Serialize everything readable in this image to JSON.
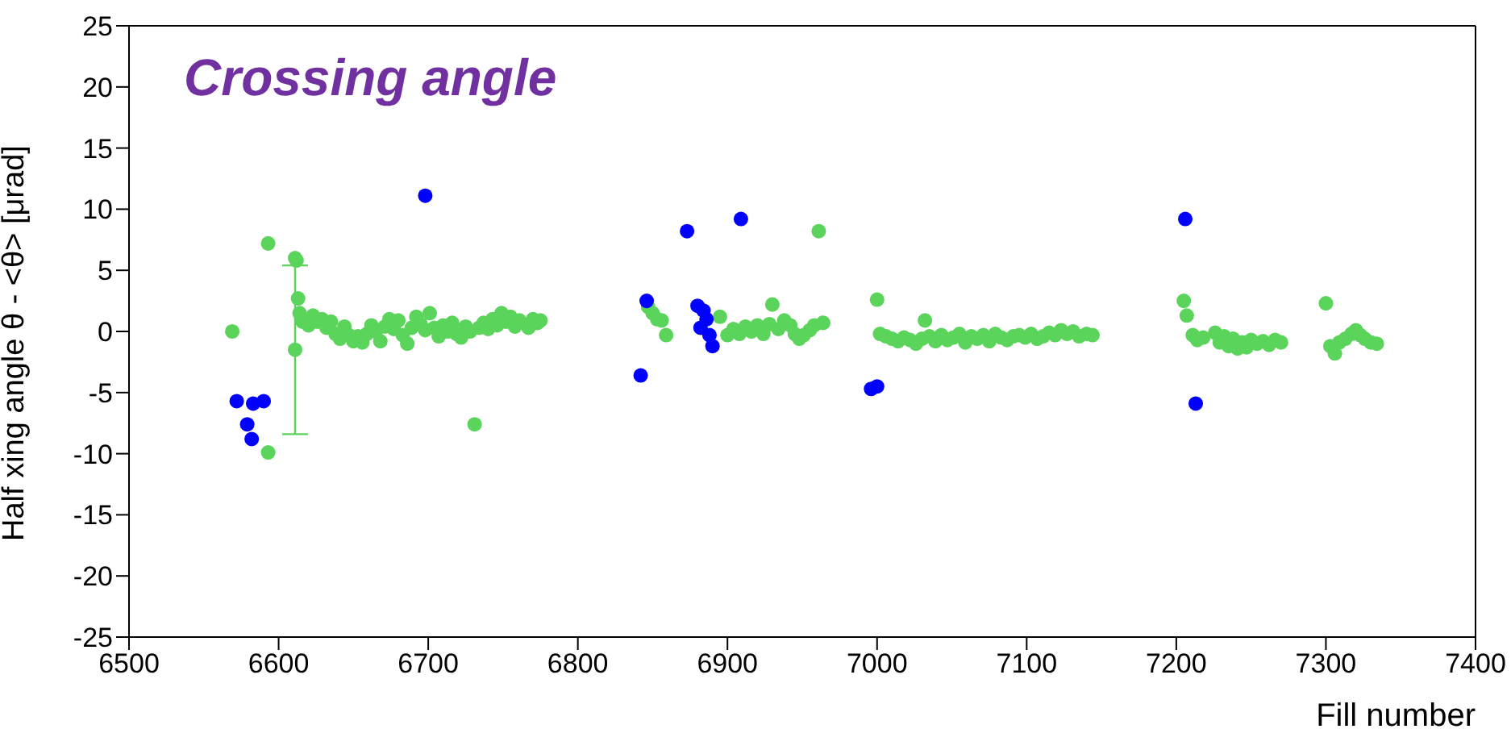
{
  "chart_data": {
    "type": "scatter",
    "title": "Crossing angle",
    "xlabel": "Fill number",
    "ylabel": "Half xing angle θ - <θ> [μrad]",
    "xlim": [
      6500,
      7400
    ],
    "xticks": [
      6500,
      6600,
      6700,
      6800,
      6900,
      7000,
      7100,
      7200,
      7300,
      7400
    ],
    "ylim": [
      -25,
      25
    ],
    "yticks": [
      -25,
      -20,
      -15,
      -10,
      -5,
      0,
      5,
      10,
      15,
      20,
      25
    ],
    "marker": "circle",
    "series": [
      {
        "color": "#5ad45a",
        "x": [
          6569,
          6593,
          6593,
          6611,
          6612,
          6611,
          6613,
          6614,
          6616,
          6620,
          6623,
          6626,
          6629,
          6632,
          6635,
          6638,
          6641,
          6644,
          6647,
          6650,
          6653,
          6656,
          6659,
          6662,
          6665,
          6668,
          6671,
          6674,
          6677,
          6680,
          6683,
          6686,
          6689,
          6692,
          6695,
          6698,
          6701,
          6704,
          6707,
          6710,
          6713,
          6716,
          6719,
          6722,
          6725,
          6728,
          6731,
          6734,
          6737,
          6740,
          6743,
          6746,
          6749,
          6752,
          6755,
          6758,
          6761,
          6767,
          6770,
          6773,
          6775,
          6847,
          6850,
          6853,
          6856,
          6859,
          6895,
          6900,
          6904,
          6908,
          6912,
          6916,
          6920,
          6924,
          6928,
          6930,
          6934,
          6938,
          6942,
          6945,
          6948,
          6951,
          6955,
          6958,
          6961,
          6964,
          7000,
          7002,
          7006,
          7010,
          7014,
          7018,
          7022,
          7026,
          7030,
          7032,
          7035,
          7039,
          7043,
          7047,
          7051,
          7055,
          7059,
          7063,
          7067,
          7071,
          7075,
          7079,
          7083,
          7087,
          7091,
          7095,
          7099,
          7103,
          7107,
          7111,
          7115,
          7119,
          7123,
          7127,
          7131,
          7135,
          7140,
          7144,
          7205,
          7207,
          7211,
          7214,
          7218,
          7226,
          7229,
          7232,
          7235,
          7238,
          7241,
          7244,
          7247,
          7250,
          7254,
          7258,
          7262,
          7266,
          7270,
          7300,
          7303,
          7306,
          7309,
          7313,
          7317,
          7320,
          7323,
          7326,
          7330,
          7334
        ],
        "values": [
          0,
          7.2,
          -9.9,
          6.0,
          5.8,
          -1.5,
          2.7,
          1.5,
          0.8,
          0.5,
          1.3,
          0.8,
          1.0,
          0.3,
          0.8,
          -0.2,
          -0.6,
          0.4,
          -0.3,
          -0.8,
          -0.4,
          -0.9,
          -0.2,
          0.5,
          0.0,
          -0.8,
          0.4,
          1.0,
          0.2,
          0.9,
          -0.3,
          -1.0,
          0.3,
          1.2,
          0.6,
          0.1,
          1.5,
          0.3,
          -0.4,
          0.5,
          0.0,
          0.7,
          -0.2,
          -0.5,
          0.4,
          0.0,
          -7.6,
          0.3,
          0.7,
          0.2,
          1.0,
          0.5,
          1.5,
          0.8,
          1.2,
          0.4,
          0.9,
          0.3,
          1.0,
          0.7,
          0.9,
          2.0,
          1.5,
          1.0,
          0.9,
          -0.3,
          1.2,
          -0.3,
          0.2,
          -0.2,
          0.4,
          0.0,
          0.5,
          -0.2,
          0.6,
          2.2,
          0.2,
          0.9,
          0.5,
          -0.2,
          -0.6,
          -0.3,
          0.1,
          0.5,
          8.2,
          0.7,
          2.6,
          -0.2,
          -0.4,
          -0.6,
          -0.8,
          -0.5,
          -0.7,
          -1.0,
          -0.6,
          0.9,
          -0.4,
          -0.8,
          -0.3,
          -0.7,
          -0.5,
          -0.2,
          -0.9,
          -0.4,
          -0.6,
          -0.3,
          -0.8,
          -0.2,
          -0.5,
          -0.7,
          -0.4,
          -0.3,
          -0.5,
          -0.2,
          -0.6,
          -0.4,
          -0.1,
          -0.3,
          0.1,
          -0.2,
          0.0,
          -0.4,
          -0.2,
          -0.3,
          2.5,
          1.3,
          -0.3,
          -0.7,
          -0.5,
          -0.1,
          -0.9,
          -0.4,
          -1.2,
          -0.6,
          -1.4,
          -0.9,
          -1.3,
          -0.7,
          -1.0,
          -0.8,
          -1.1,
          -0.7,
          -0.9,
          2.3,
          -1.2,
          -1.8,
          -0.9,
          -0.6,
          -0.2,
          0.1,
          -0.3,
          -0.6,
          -0.9,
          -1.0
        ],
        "errors": [
          null,
          null,
          null,
          null,
          null,
          6.9,
          null,
          null,
          null,
          null,
          null,
          null,
          null,
          null,
          null,
          null,
          null,
          null,
          null,
          null,
          null,
          null,
          null,
          null,
          null,
          null,
          null,
          null,
          null,
          null,
          null,
          null,
          null,
          null,
          null,
          null,
          null,
          null,
          null,
          null,
          null,
          null,
          null,
          null,
          null,
          null,
          null,
          null,
          null,
          null,
          null,
          null,
          null,
          null,
          null,
          null,
          null,
          null,
          null,
          null,
          null,
          null,
          null,
          null,
          null,
          null,
          null,
          null,
          null,
          null,
          null,
          null,
          null,
          null,
          null,
          null,
          null,
          null,
          null,
          null,
          null,
          null,
          null,
          null,
          null,
          null,
          null,
          null,
          null,
          null,
          null,
          null,
          null,
          null,
          null,
          null,
          null,
          null,
          null,
          null,
          null,
          null,
          null,
          null,
          null,
          null,
          null,
          null,
          null,
          null,
          null,
          null,
          null,
          null,
          null,
          null,
          null,
          null,
          null,
          null,
          null,
          null,
          null,
          null,
          null,
          null,
          null,
          null,
          null,
          null,
          null,
          null,
          null,
          null,
          null,
          null,
          null,
          null,
          null,
          null,
          null,
          null,
          null,
          null,
          null,
          null,
          null,
          null,
          null,
          null,
          null,
          null,
          null,
          null
        ]
      },
      {
        "color": "#0000ff",
        "x": [
          6572,
          6579,
          6582,
          6583,
          6590,
          6698,
          6842,
          6846,
          6873,
          6880,
          6882,
          6884,
          6886,
          6888,
          6890,
          6909,
          6996,
          7000,
          7206,
          7213
        ],
        "values": [
          -5.7,
          -7.6,
          -8.8,
          -5.9,
          -5.7,
          11.1,
          -3.6,
          2.5,
          8.2,
          2.1,
          0.3,
          1.7,
          1.0,
          -0.3,
          -1.2,
          9.2,
          -4.7,
          -4.5,
          9.2,
          -5.9
        ]
      }
    ]
  }
}
